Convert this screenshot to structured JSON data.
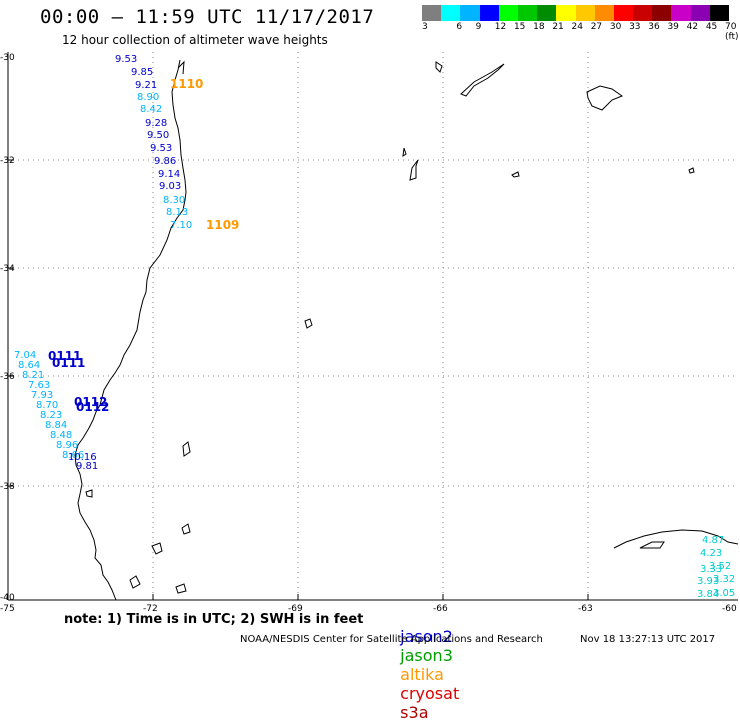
{
  "title": "00:00 – 11:59 UTC 11/17/2017",
  "subtitle": "12 hour collection of altimeter wave heights",
  "colorbar": {
    "colors": [
      "#7f7f7f",
      "#00ffff",
      "#00b4ff",
      "#0000ff",
      "#00ff00",
      "#00c800",
      "#008c00",
      "#ffff00",
      "#ffc800",
      "#ff8c00",
      "#ff0000",
      "#c80000",
      "#8c0000",
      "#c800c8",
      "#8c00b4",
      "#000000"
    ],
    "labels": [
      "3",
      "6",
      "9",
      "12",
      "15",
      "18",
      "21",
      "24",
      "27",
      "30",
      "33",
      "36",
      "39",
      "42",
      "45",
      "70 (ft)"
    ]
  },
  "axes": {
    "lat_labels": [
      "-30",
      "-32",
      "-34",
      "-36",
      "-38",
      "-40"
    ],
    "lon_labels": [
      "-75",
      "-72",
      "-69",
      "-66",
      "-63",
      "-60"
    ]
  },
  "tracks": {
    "north_values": [
      {
        "v": "9.53",
        "c": "#0000cc"
      },
      {
        "v": "9.85",
        "c": "#0000cc"
      },
      {
        "v": "9.21",
        "c": "#0000cc"
      },
      {
        "v": "8.90",
        "c": "#00b4ff"
      },
      {
        "v": "8.42",
        "c": "#00b4ff"
      },
      {
        "v": "9.28",
        "c": "#0000cc"
      },
      {
        "v": "9.50",
        "c": "#0000cc"
      },
      {
        "v": "9.53",
        "c": "#0000cc"
      },
      {
        "v": "9.86",
        "c": "#0000cc"
      },
      {
        "v": "9.14",
        "c": "#0000cc"
      },
      {
        "v": "9.03",
        "c": "#0000cc"
      },
      {
        "v": "8.30",
        "c": "#00b4ff"
      },
      {
        "v": "8.13",
        "c": "#00b4ff"
      },
      {
        "v": "7.10",
        "c": "#00b4ff"
      }
    ],
    "north_times": [
      "1110",
      "1109"
    ],
    "south_values": [
      {
        "v": "7.04",
        "c": "#00b4ff"
      },
      {
        "v": "8.64",
        "c": "#00b4ff"
      },
      {
        "v": "8.21",
        "c": "#00b4ff"
      },
      {
        "v": "7.63",
        "c": "#00b4ff"
      },
      {
        "v": "7.93",
        "c": "#00b4ff"
      },
      {
        "v": "8.70",
        "c": "#00b4ff"
      },
      {
        "v": "8.23",
        "c": "#00b4ff"
      },
      {
        "v": "8.84",
        "c": "#00b4ff"
      },
      {
        "v": "8.48",
        "c": "#00b4ff"
      },
      {
        "v": "8.96",
        "c": "#00b4ff"
      },
      {
        "v": "8.66",
        "c": "#00b4ff"
      },
      {
        "v": "10.16",
        "c": "#0000cc"
      },
      {
        "v": "9.81",
        "c": "#0000cc"
      }
    ],
    "south_times": [
      "0111",
      "0111",
      "0112",
      "0112"
    ],
    "southeast_values": [
      "4.87",
      "4.23",
      "3.52",
      "3.33",
      "3.93",
      "3.32",
      "3.84",
      "3.05"
    ]
  },
  "note": "note: 1) Time is in UTC; 2) SWH is in feet",
  "satellites": [
    {
      "name": "jason2",
      "color": "#0000cc"
    },
    {
      "name": "jason3",
      "color": "#00a000"
    },
    {
      "name": "altika",
      "color": "#ff9900"
    },
    {
      "name": "cryosat",
      "color": "#dd0000"
    },
    {
      "name": "s3a",
      "color": "#aa0000"
    }
  ],
  "credit": "NOAA/NESDIS Center for Satellite Applications and Research",
  "timestamp": "Nov 18 13:27:13 UTC 2017"
}
